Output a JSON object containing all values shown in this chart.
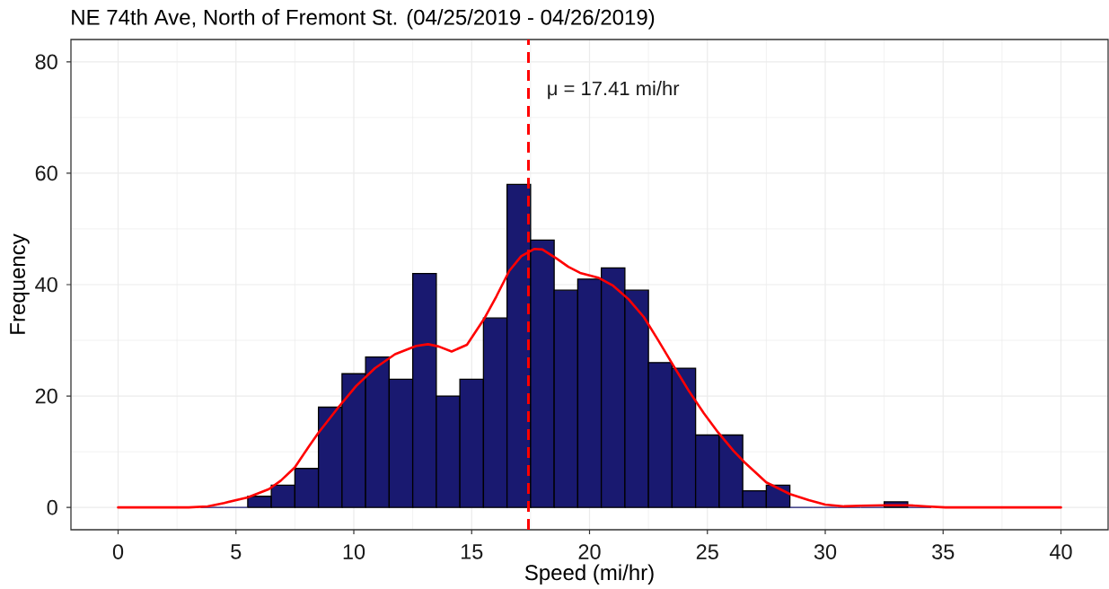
{
  "chart_data": {
    "type": "histogram",
    "title": "NE 74th Ave, North of Fremont St. (04/25/2019 - 04/26/2019)",
    "xlabel": "Speed (mi/hr)",
    "ylabel": "Frequency",
    "series": [
      {
        "color": "#191970",
        "bins": [
          3.5,
          4.5,
          5.5,
          6.5,
          7.5,
          8.5,
          9.5,
          10.5,
          11.5,
          12.5,
          13.5,
          14.5,
          15.5,
          16.5,
          17.5,
          18.5,
          19.5,
          20.5,
          21.5,
          22.5,
          23.5,
          24.5,
          25.5,
          26.5,
          27.5,
          28.5,
          29.5,
          30.5,
          31.5,
          32.5,
          33.5,
          34.5
        ],
        "values": [
          0,
          0,
          2,
          4,
          7,
          18,
          24,
          27,
          23,
          42,
          20,
          23,
          34,
          58,
          48,
          39,
          41,
          43,
          39,
          26,
          25,
          13,
          13,
          3,
          4,
          0,
          0,
          0,
          0,
          1,
          0
        ]
      },
      {
        "type": "line",
        "color": "#ff0000",
        "x": [
          0,
          3.0,
          3.8,
          4.5,
          5.5,
          6.4,
          6.9,
          7.5,
          8.1,
          8.5,
          9.35,
          10.1,
          10.9,
          11.75,
          12.65,
          13.15,
          13.6,
          14.15,
          14.8,
          15.55,
          16.05,
          16.6,
          17.1,
          17.65,
          18.0,
          18.6,
          19.1,
          19.6,
          20.4,
          21.0,
          21.65,
          22.3,
          22.9,
          23.55,
          24.2,
          24.85,
          25.45,
          26.1,
          26.6,
          27.5,
          28.5,
          29.3,
          30.0,
          30.8,
          31.5,
          32.5,
          33.5,
          34.3,
          35.1,
          40
        ],
        "values": [
          0,
          0,
          0.2,
          0.8,
          1.8,
          3.3,
          4.8,
          7.2,
          11.0,
          13.4,
          18.0,
          21.8,
          25.0,
          27.5,
          29.0,
          29.3,
          28.9,
          28.0,
          29.2,
          34.0,
          37.9,
          42.5,
          45.1,
          46.4,
          46.3,
          44.7,
          43.2,
          42.1,
          41.2,
          39.8,
          37.4,
          34.2,
          30.1,
          25.5,
          21.0,
          16.9,
          13.5,
          10.2,
          8.0,
          4.5,
          2.4,
          1.3,
          0.5,
          0.2,
          0.3,
          0.4,
          0.4,
          0.2,
          0,
          0
        ]
      }
    ],
    "xlim": [
      -2,
      42
    ],
    "ylim": [
      -4,
      84
    ],
    "xticks": [
      0,
      5,
      10,
      15,
      20,
      25,
      30,
      35,
      40
    ],
    "yticks": [
      0,
      20,
      40,
      60,
      80
    ],
    "grid": true,
    "ref_lines": [
      {
        "axis": "x",
        "value": 17.41,
        "label": "μ = 17.41 mi/hr",
        "color": "#ff0000",
        "line_style": "dashed"
      }
    ]
  }
}
